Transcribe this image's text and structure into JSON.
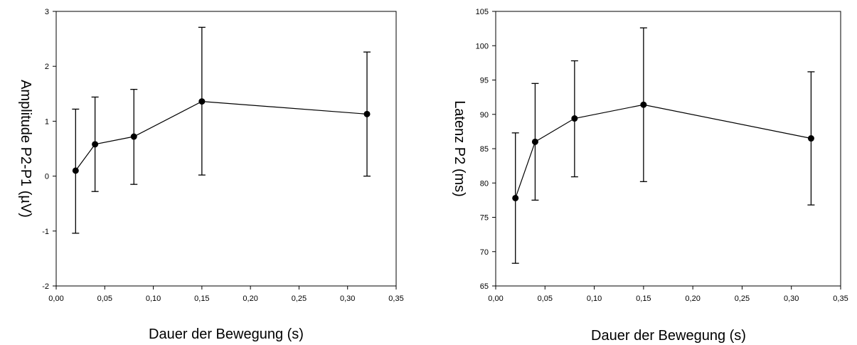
{
  "chart_data": [
    {
      "type": "line",
      "title": "",
      "xlabel": "Dauer der Bewegung (s)",
      "ylabel": "Amplitude P2-P1 (µV)",
      "xlim": [
        0,
        0.35
      ],
      "ylim": [
        -2,
        3
      ],
      "x_ticks": [
        0,
        0.05,
        0.1,
        0.15,
        0.2,
        0.25,
        0.3,
        0.35
      ],
      "x_tick_labels": [
        "0,00",
        "0,05",
        "0,10",
        "0,15",
        "0,20",
        "0,25",
        "0,30",
        "0,35"
      ],
      "y_ticks": [
        -2,
        -1,
        0,
        1,
        2,
        3
      ],
      "y_tick_labels": [
        "-2",
        "-1",
        "0",
        "1",
        "2",
        "3"
      ],
      "grid": false,
      "series": [
        {
          "x": [
            0.02,
            0.04,
            0.08,
            0.15,
            0.32
          ],
          "y": [
            0.1,
            0.58,
            0.72,
            1.36,
            1.13
          ],
          "err_low": [
            -1.04,
            -0.28,
            -0.15,
            0.02,
            0.0
          ],
          "err_high": [
            1.22,
            1.44,
            1.58,
            2.71,
            2.26
          ],
          "color": "#000000"
        }
      ]
    },
    {
      "type": "line",
      "title": "",
      "xlabel": "Dauer der Bewegung (s)",
      "ylabel": "Latenz P2 (ms)",
      "xlim": [
        0,
        0.35
      ],
      "ylim": [
        65,
        105
      ],
      "x_ticks": [
        0,
        0.05,
        0.1,
        0.15,
        0.2,
        0.25,
        0.3,
        0.35
      ],
      "x_tick_labels": [
        "0,00",
        "0,05",
        "0,10",
        "0,15",
        "0,20",
        "0,25",
        "0,30",
        "0,35"
      ],
      "y_ticks": [
        65,
        70,
        75,
        80,
        85,
        90,
        95,
        100,
        105
      ],
      "y_tick_labels": [
        "65",
        "70",
        "75",
        "80",
        "85",
        "90",
        "95",
        "100",
        "105"
      ],
      "grid": false,
      "series": [
        {
          "x": [
            0.02,
            0.04,
            0.08,
            0.15,
            0.32
          ],
          "y": [
            77.8,
            86.0,
            89.4,
            91.4,
            86.5
          ],
          "err_low": [
            68.3,
            77.5,
            80.9,
            80.2,
            76.8
          ],
          "err_high": [
            87.3,
            94.5,
            97.8,
            102.6,
            96.2
          ],
          "color": "#000000"
        }
      ]
    }
  ]
}
